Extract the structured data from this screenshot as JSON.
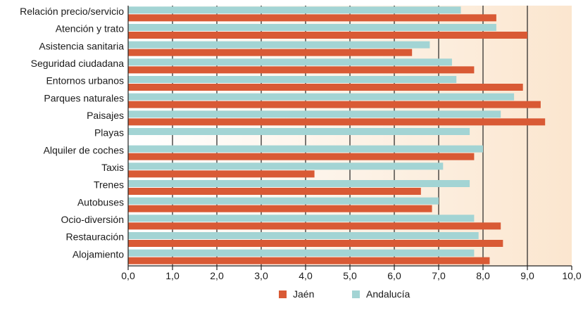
{
  "chart_data": {
    "type": "bar",
    "orientation": "horizontal",
    "categories": [
      "Relación precio/servicio",
      "Atención y trato",
      "Asistencia sanitaria",
      "Seguridad ciudadana",
      "Entornos urbanos",
      "Parques naturales",
      "Paisajes",
      "Playas",
      "Alquiler de coches",
      "Taxis",
      "Trenes",
      "Autobuses",
      "Ocio-diversión",
      "Restauración",
      "Alojamiento"
    ],
    "series": [
      {
        "name": "Andalucía",
        "color": "#a3d4d4",
        "values": [
          7.5,
          8.3,
          6.8,
          7.3,
          7.4,
          8.7,
          8.4,
          7.7,
          8.0,
          7.1,
          7.7,
          7.0,
          7.8,
          7.9,
          7.8
        ]
      },
      {
        "name": "Jaén",
        "color": "#d95a35",
        "values": [
          8.3,
          9.0,
          6.4,
          7.8,
          8.9,
          9.3,
          9.4,
          null,
          7.8,
          4.2,
          6.6,
          6.85,
          8.4,
          8.45,
          8.15
        ]
      }
    ],
    "xlim": [
      0,
      10
    ],
    "xticks": [
      "0,0",
      "1,0",
      "2,0",
      "3,0",
      "4,0",
      "5,0",
      "6,0",
      "7,0",
      "8,0",
      "9,0",
      "10,0"
    ],
    "grid": true,
    "legend": {
      "placement": "bottom-center",
      "entries": [
        {
          "label": "Jaén",
          "color": "#d95a35"
        },
        {
          "label": "Andalucía",
          "color": "#a3d4d4"
        }
      ]
    },
    "background_gradient": [
      "#ffffff",
      "#fbe6cf"
    ]
  }
}
